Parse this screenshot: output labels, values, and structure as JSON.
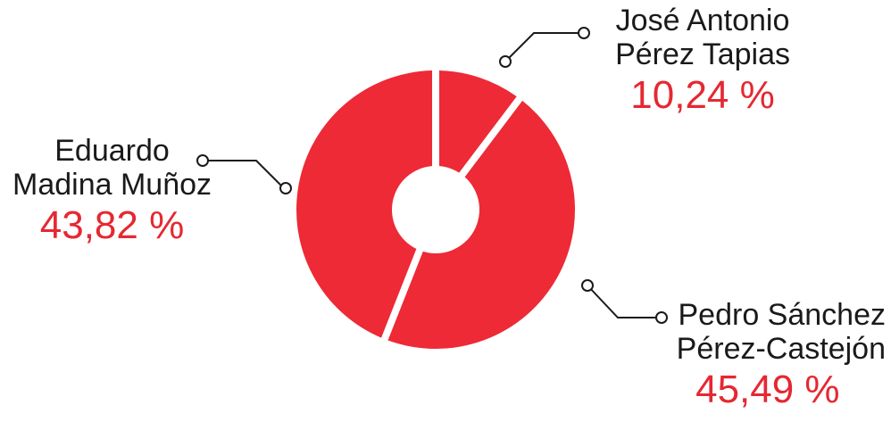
{
  "chart_data": {
    "type": "pie",
    "variant": "donut",
    "slices": [
      {
        "label_lines": [
          "José Antonio",
          "Pérez Tapias"
        ],
        "value": 10.24,
        "display": "10,24 %"
      },
      {
        "label_lines": [
          "Pedro Sánchez",
          "Pérez-Castejón"
        ],
        "value": 45.49,
        "display": "45,49 %"
      },
      {
        "label_lines": [
          "Eduardo",
          "Madina Muñoz"
        ],
        "value": 43.82,
        "display": "43,82 %"
      }
    ],
    "colors": {
      "slice": "#ed2a35",
      "value_text": "#e52832",
      "label_text": "#1a1a1a",
      "leader": "#1a1a1a"
    }
  }
}
